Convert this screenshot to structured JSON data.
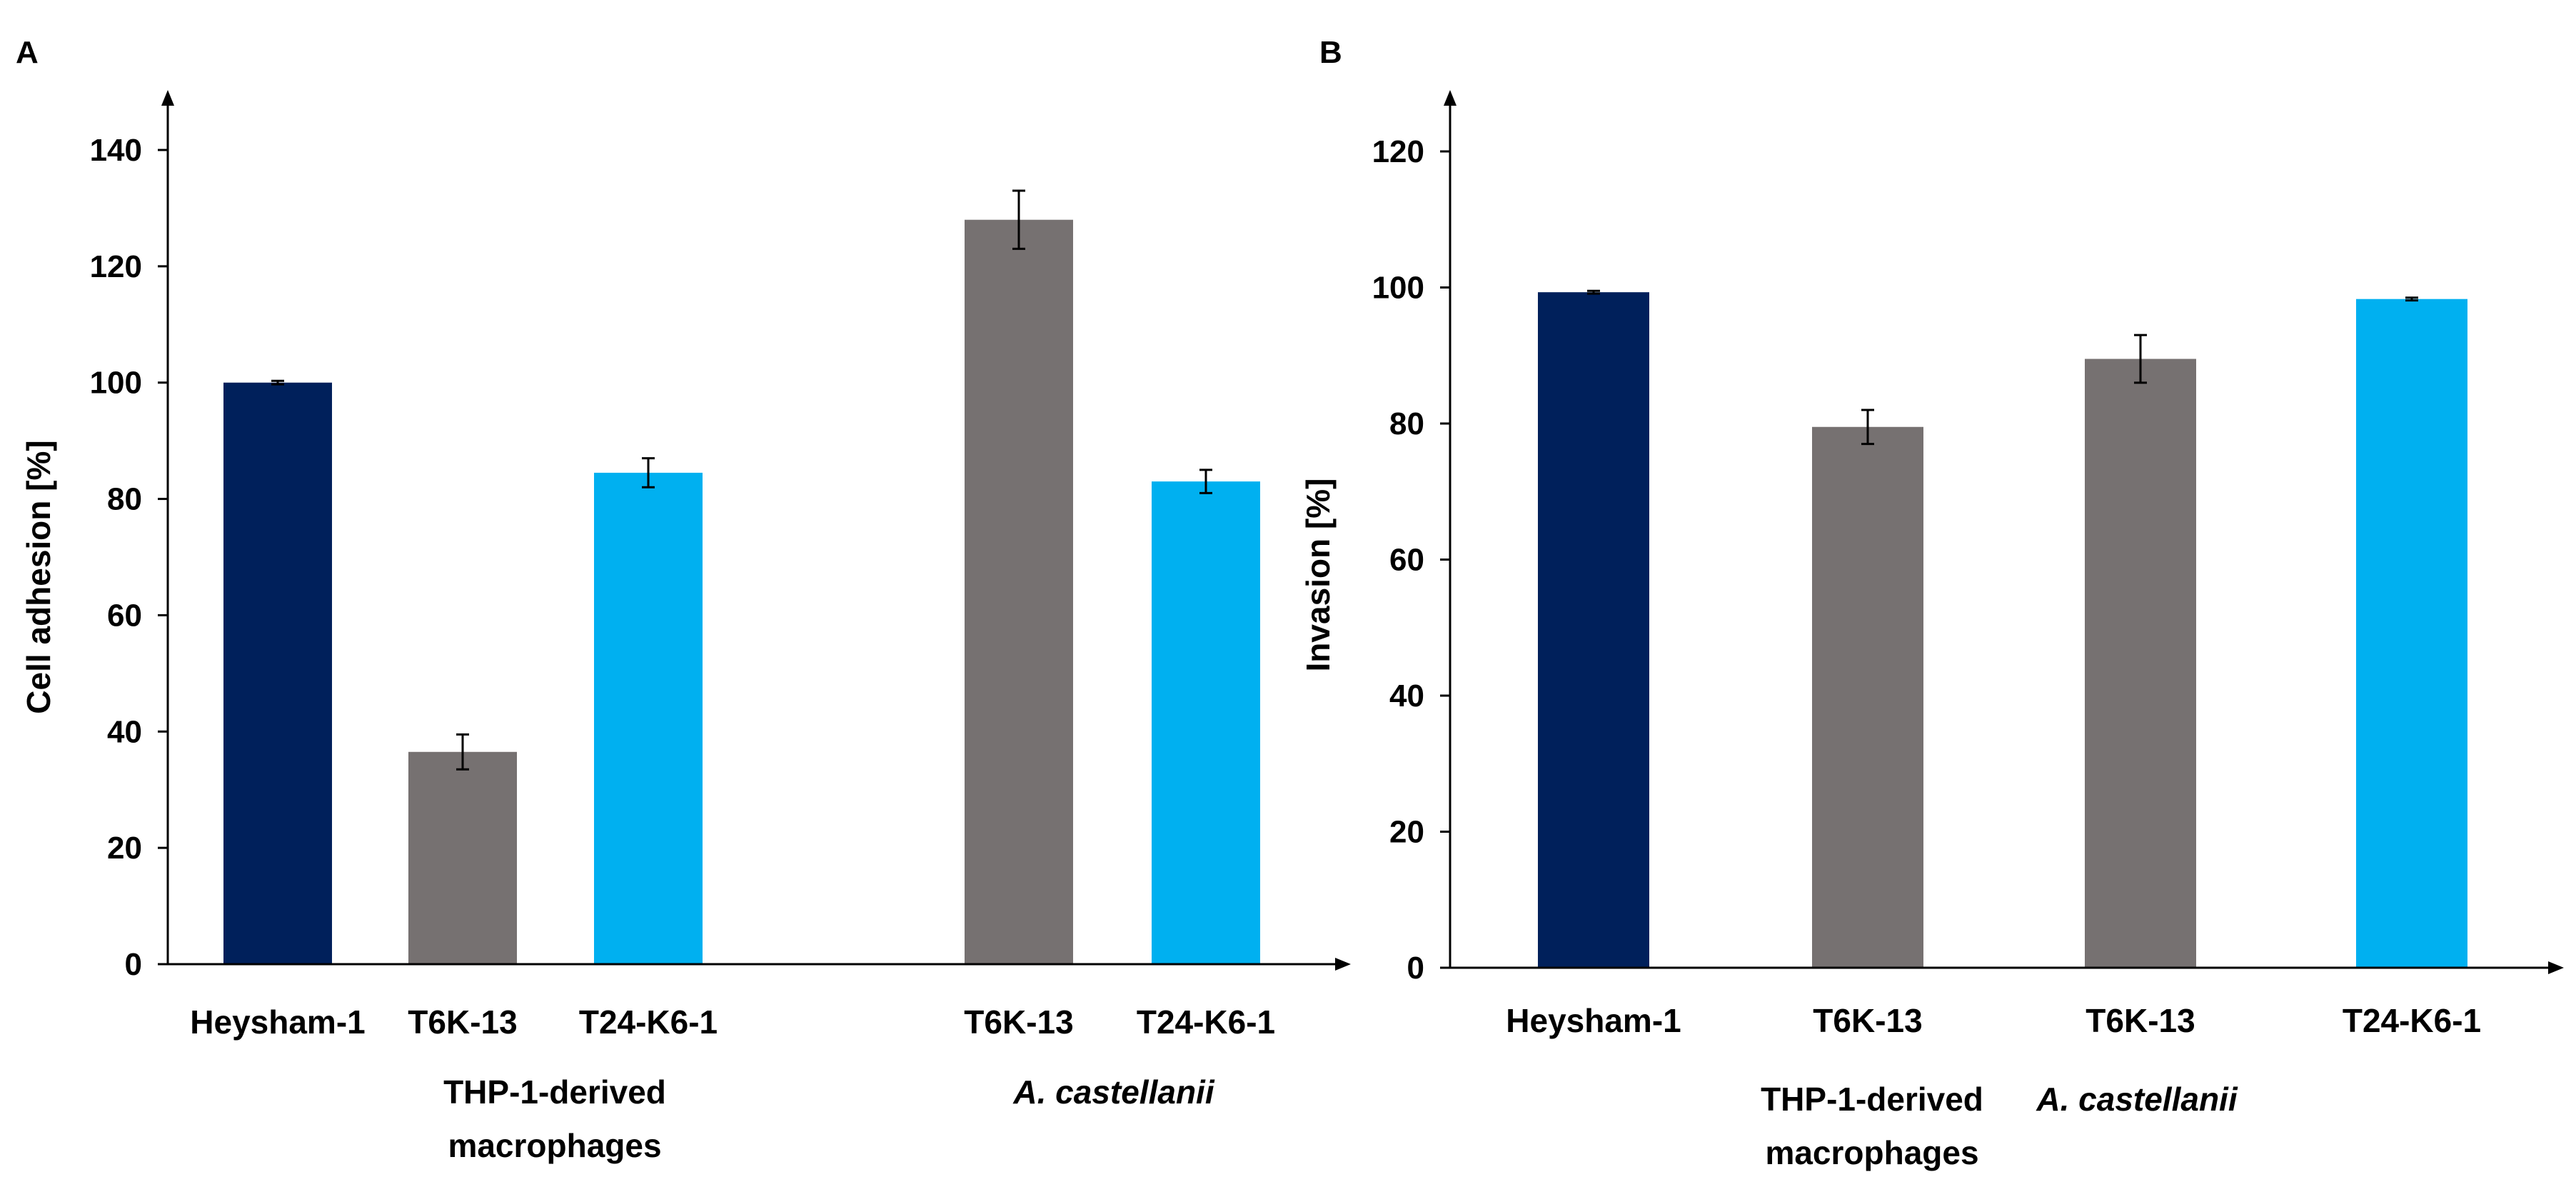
{
  "chart_data": [
    {
      "panel": "A",
      "type": "bar",
      "ylabel": "Cell adhesion [%]",
      "ylim": [
        0,
        150
      ],
      "yticks": [
        0,
        20,
        40,
        60,
        80,
        100,
        120,
        140
      ],
      "grid": false,
      "bars": [
        {
          "label": "Heysham-1",
          "value": 100,
          "error": 0.3,
          "color": "#00205b"
        },
        {
          "label": "T6K-13",
          "value": 36.5,
          "error": 3,
          "color": "#767171"
        },
        {
          "label": "T24-K6-1",
          "value": 84.5,
          "error": 2.5,
          "color": "#00b0f0"
        },
        {
          "label": "T6K-13",
          "value": 128,
          "error": 5,
          "color": "#767171"
        },
        {
          "label": "T24-K6-1",
          "value": 83,
          "error": 2,
          "color": "#00b0f0"
        }
      ],
      "groups": [
        {
          "line1": "THP-1-derived",
          "line2": "macrophages",
          "italic": false
        },
        {
          "line1": "A. castellanii",
          "line2": "",
          "italic": true
        }
      ]
    },
    {
      "panel": "B",
      "type": "bar",
      "ylabel": "Invasion [%]",
      "ylim": [
        0,
        130
      ],
      "yticks": [
        0,
        20,
        40,
        60,
        80,
        100,
        120
      ],
      "grid": false,
      "bars": [
        {
          "label": "Heysham-1",
          "value": 99.3,
          "error": 0.2,
          "color": "#00205b"
        },
        {
          "label": "T6K-13",
          "value": 79.5,
          "error": 2.5,
          "color": "#767171"
        },
        {
          "label": "T6K-13",
          "value": 89.5,
          "error": 3.5,
          "color": "#767171"
        },
        {
          "label": "T24-K6-1",
          "value": 98.3,
          "error": 0.2,
          "color": "#00b0f0"
        }
      ],
      "groups": [
        {
          "line1": "THP-1-derived",
          "line2": "macrophages",
          "italic": false
        },
        {
          "line1": "A. castellanii",
          "line2": "",
          "italic": true
        }
      ]
    }
  ]
}
